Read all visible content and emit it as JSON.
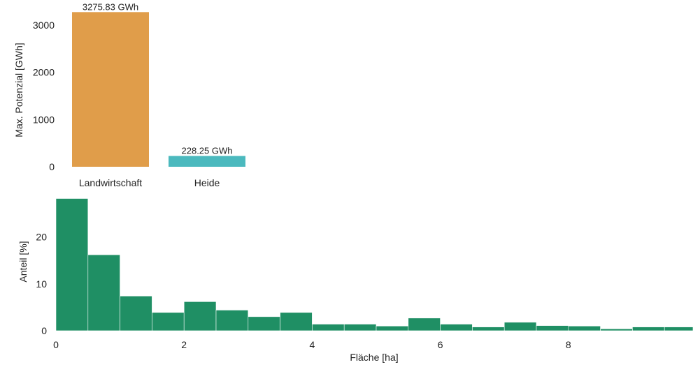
{
  "chart_data": [
    {
      "type": "bar",
      "categories": [
        "Landwirtschaft",
        "Heide"
      ],
      "values": [
        3275.83,
        228.25
      ],
      "data_labels": [
        "3275.83 GWh",
        "228.25 GWh"
      ],
      "colors": [
        "#E09D4A",
        "#4BB9BE"
      ],
      "ylabel": "Max. Potenzial [GWh]",
      "xlabel": "",
      "ylim": [
        0,
        3300
      ],
      "yticks": [
        0,
        1000,
        2000,
        3000
      ],
      "grid": false
    },
    {
      "type": "bar",
      "subtype": "histogram",
      "bin_width": 0.5,
      "x": [
        0,
        0.5,
        1,
        1.5,
        2,
        2.5,
        3,
        3.5,
        4,
        4.5,
        5,
        5.5,
        6,
        6.5,
        7,
        7.5,
        8,
        8.5,
        9,
        9.5
      ],
      "values": [
        28.2,
        16.2,
        7.4,
        3.9,
        6.2,
        4.4,
        3.0,
        3.9,
        1.4,
        1.4,
        1.0,
        2.7,
        1.4,
        0.8,
        1.8,
        1.1,
        1.0,
        0.4,
        0.8,
        0.8
      ],
      "color": "#1F8F64",
      "xlabel": "Fläche [ha]",
      "ylabel": "Anteil [%]",
      "xlim": [
        0,
        10
      ],
      "ylim": [
        0,
        29
      ],
      "xticks": [
        0,
        2,
        4,
        6,
        8
      ],
      "yticks": [
        0,
        10,
        20
      ],
      "grid": false
    }
  ]
}
